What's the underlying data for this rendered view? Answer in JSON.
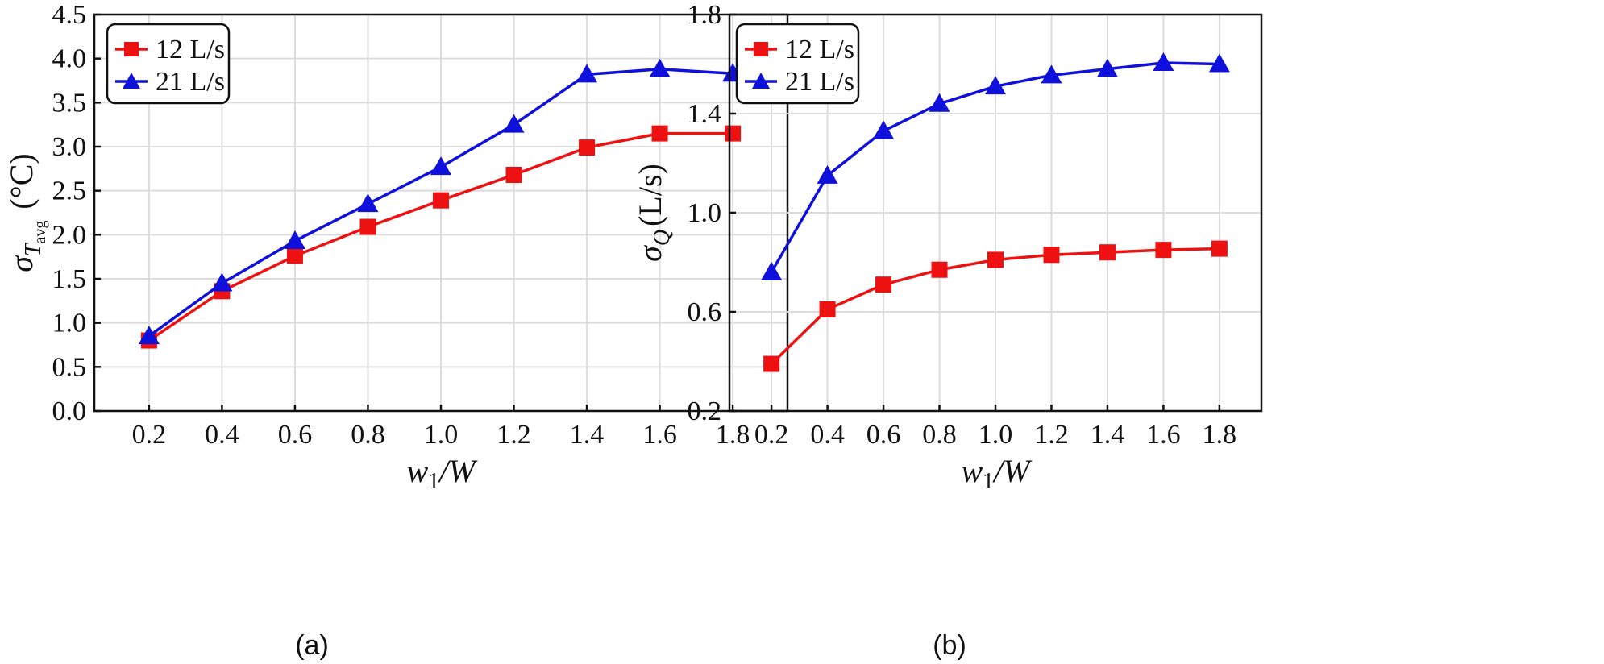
{
  "chart_data": [
    {
      "type": "line",
      "caption": "(a)",
      "x": [
        0.2,
        0.4,
        0.6,
        0.8,
        1.0,
        1.2,
        1.4,
        1.6,
        1.8
      ],
      "x_tick_labels": [
        "0.2",
        "0.4",
        "0.6",
        "0.8",
        "1.0",
        "1.2",
        "1.4",
        "1.6",
        "1.8"
      ],
      "y_tick_values": [
        0.0,
        0.5,
        1.0,
        1.5,
        2.0,
        2.5,
        3.0,
        3.5,
        4.0,
        4.5
      ],
      "y_tick_labels": [
        "0.0",
        "0.5",
        "1.0",
        "1.5",
        "2.0",
        "2.5",
        "3.0",
        "3.5",
        "4.0",
        "4.5"
      ],
      "xlim": [
        0.05,
        1.95
      ],
      "ylim": [
        0,
        4.5
      ],
      "xlabel": {
        "main": "w",
        "sub": "1",
        "rest": "/W"
      },
      "ylabel": {
        "main": "σ",
        "sub": "T",
        "subsub": "avg",
        "unit": "(°C)"
      },
      "grid": true,
      "legend_position": "top-left",
      "series": [
        {
          "name": "12 L/s",
          "color": "#ee1111",
          "marker": "square",
          "values": [
            0.8,
            1.36,
            1.76,
            2.09,
            2.39,
            2.68,
            2.99,
            3.15,
            3.15
          ]
        },
        {
          "name": "21 L/s",
          "color": "#1010dd",
          "marker": "triangle",
          "values": [
            0.85,
            1.45,
            1.93,
            2.35,
            2.77,
            3.25,
            3.82,
            3.88,
            3.83
          ]
        }
      ]
    },
    {
      "type": "line",
      "caption": "(b)",
      "x": [
        0.2,
        0.4,
        0.6,
        0.8,
        1.0,
        1.2,
        1.4,
        1.6,
        1.8
      ],
      "x_tick_labels": [
        "0.2",
        "0.4",
        "0.6",
        "0.8",
        "1.0",
        "1.2",
        "1.4",
        "1.6",
        "1.8"
      ],
      "y_tick_values": [
        0.2,
        0.6,
        1.0,
        1.4,
        1.8
      ],
      "y_tick_labels": [
        "0.2",
        "0.6",
        "1.0",
        "1.4",
        "1.8"
      ],
      "xlim": [
        0.05,
        1.95
      ],
      "ylim": [
        0.2,
        1.8
      ],
      "xlabel": {
        "main": "w",
        "sub": "1",
        "rest": "/W"
      },
      "ylabel": {
        "main": "σ",
        "sub": "Q",
        "subsub": "",
        "unit": "(L/s)"
      },
      "grid": true,
      "legend_position": "top-left",
      "series": [
        {
          "name": "12 L/s",
          "color": "#ee1111",
          "marker": "square",
          "values": [
            0.39,
            0.61,
            0.71,
            0.77,
            0.81,
            0.83,
            0.84,
            0.85,
            0.855
          ]
        },
        {
          "name": "21 L/s",
          "color": "#1010dd",
          "marker": "triangle",
          "values": [
            0.76,
            1.15,
            1.33,
            1.44,
            1.51,
            1.555,
            1.58,
            1.605,
            1.6
          ]
        }
      ]
    }
  ]
}
